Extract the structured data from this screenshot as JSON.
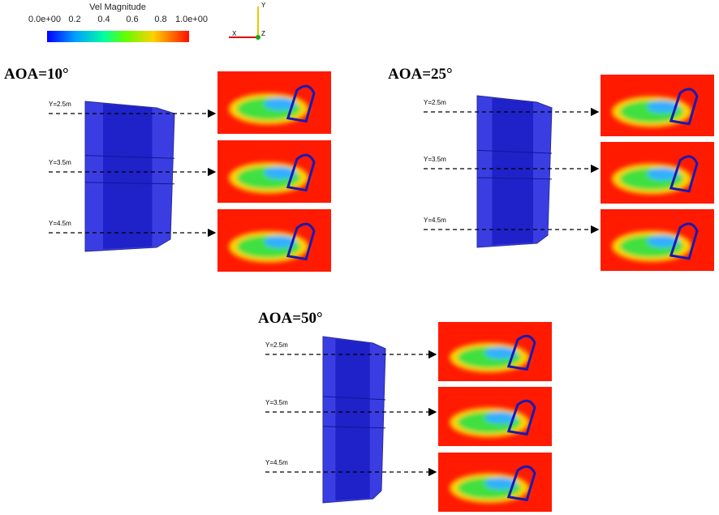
{
  "colorbar": {
    "title": "Vel Magnitude",
    "tick_labels": [
      "0.0e+00",
      "0.2",
      "0.4",
      "0.6",
      "0.8",
      "1.0e+00"
    ]
  },
  "axes_triad": {
    "y": "Y",
    "x": "X",
    "z": "Z"
  },
  "panels": [
    {
      "title": "AOA=10°",
      "slices": [
        "Y=2.5m",
        "Y=3.5m",
        "Y=4.5m"
      ]
    },
    {
      "title": "AOA=25°",
      "slices": [
        "Y=2.5m",
        "Y=3.5m",
        "Y=4.5m"
      ]
    },
    {
      "title": "AOA=50°",
      "slices": [
        "Y=2.5m",
        "Y=3.5m",
        "Y=4.5m"
      ]
    }
  ]
}
